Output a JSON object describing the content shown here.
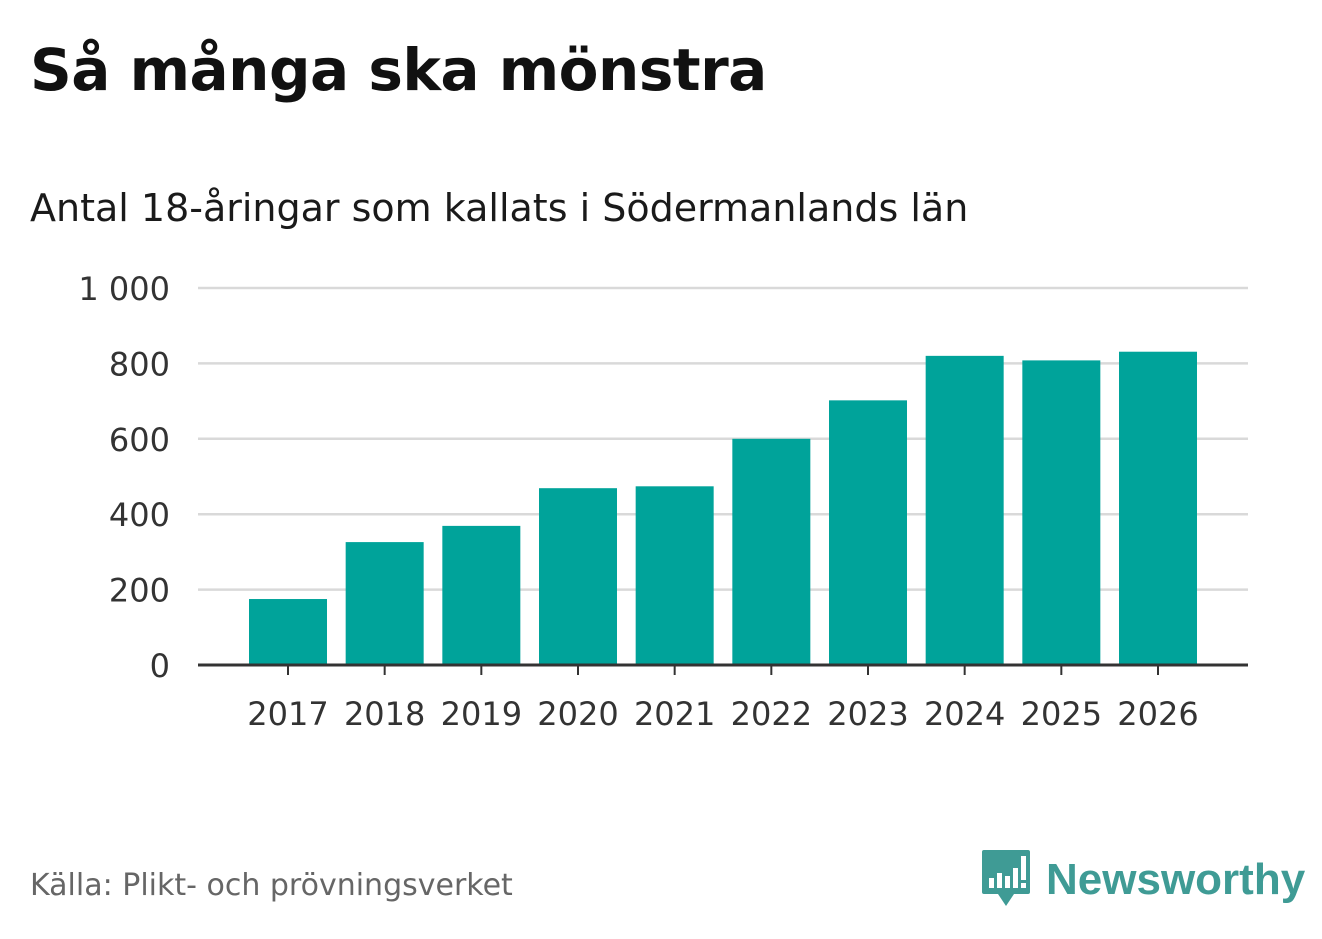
{
  "header": {
    "title": "Så många ska mönstra",
    "subtitle": "Antal 18-åringar som kallats i Södermanlands län"
  },
  "footer": {
    "source": "Källa: Plikt- och prövningsverket",
    "brand": "Newsworthy"
  },
  "colors": {
    "bar": "#00a39a",
    "grid": "#d9d9d9",
    "axis": "#333333",
    "brand": "#3f9b95"
  },
  "chart_data": {
    "type": "bar",
    "title": "Så många ska mönstra",
    "subtitle": "Antal 18-åringar som kallats i Södermanlands län",
    "xlabel": "",
    "ylabel": "",
    "categories": [
      "2017",
      "2018",
      "2019",
      "2020",
      "2021",
      "2022",
      "2023",
      "2024",
      "2025",
      "2026"
    ],
    "values": [
      175,
      326,
      369,
      469,
      474,
      600,
      702,
      820,
      808,
      831
    ],
    "ylim": [
      0,
      1000
    ],
    "yticks": [
      0,
      200,
      400,
      600,
      800,
      1000
    ],
    "ytick_labels": [
      "0",
      "200",
      "400",
      "600",
      "800",
      "1 000"
    ],
    "grid": true,
    "legend": "none"
  }
}
